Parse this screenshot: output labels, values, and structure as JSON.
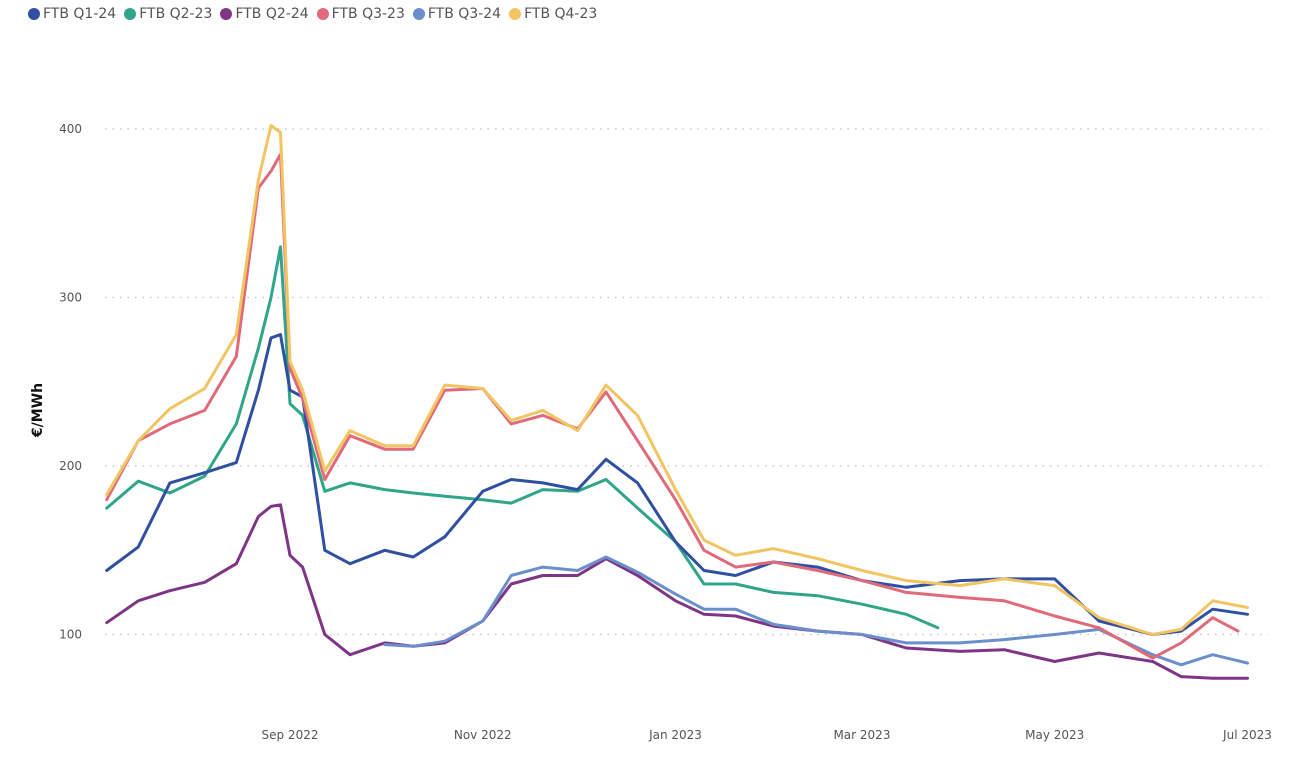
{
  "chart_data": {
    "type": "line",
    "title": "",
    "xlabel": "",
    "ylabel": "€/MWh",
    "ylim": [
      40,
      420
    ],
    "yticks": [
      100,
      200,
      300,
      400
    ],
    "xticks": [
      {
        "date": "2022-09-01",
        "label": "Sep 2022"
      },
      {
        "date": "2022-11-01",
        "label": "Nov 2022"
      },
      {
        "date": "2023-01-01",
        "label": "Jan 2023"
      },
      {
        "date": "2023-03-01",
        "label": "Mar 2023"
      },
      {
        "date": "2023-05-01",
        "label": "May 2023"
      },
      {
        "date": "2023-07-01",
        "label": "Jul 2023"
      }
    ],
    "grid": "horizontal dotted",
    "legend_position": "top-left",
    "series": [
      {
        "name": "FTB Q1-24",
        "color": "#2f4fa2",
        "points": [
          [
            "2022-07-05",
            138
          ],
          [
            "2022-07-15",
            152
          ],
          [
            "2022-07-25",
            190
          ],
          [
            "2022-08-05",
            196
          ],
          [
            "2022-08-15",
            202
          ],
          [
            "2022-08-22",
            245
          ],
          [
            "2022-08-26",
            276
          ],
          [
            "2022-08-29",
            278
          ],
          [
            "2022-09-01",
            245
          ],
          [
            "2022-09-05",
            241
          ],
          [
            "2022-09-12",
            150
          ],
          [
            "2022-09-20",
            142
          ],
          [
            "2022-10-01",
            150
          ],
          [
            "2022-10-10",
            146
          ],
          [
            "2022-10-20",
            158
          ],
          [
            "2022-11-01",
            185
          ],
          [
            "2022-11-10",
            192
          ],
          [
            "2022-11-20",
            190
          ],
          [
            "2022-12-01",
            186
          ],
          [
            "2022-12-10",
            204
          ],
          [
            "2022-12-20",
            190
          ],
          [
            "2023-01-01",
            155
          ],
          [
            "2023-01-10",
            138
          ],
          [
            "2023-01-20",
            135
          ],
          [
            "2023-02-01",
            143
          ],
          [
            "2023-02-15",
            140
          ],
          [
            "2023-03-01",
            132
          ],
          [
            "2023-03-15",
            128
          ],
          [
            "2023-04-01",
            132
          ],
          [
            "2023-04-15",
            133
          ],
          [
            "2023-05-01",
            133
          ],
          [
            "2023-05-15",
            108
          ],
          [
            "2023-06-01",
            100
          ],
          [
            "2023-06-10",
            102
          ],
          [
            "2023-06-20",
            115
          ],
          [
            "2023-07-01",
            112
          ]
        ]
      },
      {
        "name": "FTB Q2-23",
        "color": "#2fa58a",
        "points": [
          [
            "2022-07-05",
            175
          ],
          [
            "2022-07-15",
            191
          ],
          [
            "2022-07-25",
            184
          ],
          [
            "2022-08-05",
            194
          ],
          [
            "2022-08-15",
            225
          ],
          [
            "2022-08-22",
            270
          ],
          [
            "2022-08-26",
            300
          ],
          [
            "2022-08-29",
            330
          ],
          [
            "2022-09-01",
            237
          ],
          [
            "2022-09-05",
            230
          ],
          [
            "2022-09-12",
            185
          ],
          [
            "2022-09-20",
            190
          ],
          [
            "2022-10-01",
            186
          ],
          [
            "2022-10-10",
            184
          ],
          [
            "2022-10-20",
            182
          ],
          [
            "2022-11-01",
            180
          ],
          [
            "2022-11-10",
            178
          ],
          [
            "2022-11-20",
            186
          ],
          [
            "2022-12-01",
            185
          ],
          [
            "2022-12-10",
            192
          ],
          [
            "2022-12-20",
            175
          ],
          [
            "2023-01-01",
            155
          ],
          [
            "2023-01-10",
            130
          ],
          [
            "2023-01-20",
            130
          ],
          [
            "2023-02-01",
            125
          ],
          [
            "2023-02-15",
            123
          ],
          [
            "2023-03-01",
            118
          ],
          [
            "2023-03-15",
            112
          ],
          [
            "2023-03-25",
            104
          ]
        ]
      },
      {
        "name": "FTB Q2-24",
        "color": "#7e3585",
        "points": [
          [
            "2022-07-05",
            107
          ],
          [
            "2022-07-15",
            120
          ],
          [
            "2022-07-25",
            126
          ],
          [
            "2022-08-05",
            131
          ],
          [
            "2022-08-15",
            142
          ],
          [
            "2022-08-22",
            170
          ],
          [
            "2022-08-26",
            176
          ],
          [
            "2022-08-29",
            177
          ],
          [
            "2022-09-01",
            147
          ],
          [
            "2022-09-05",
            140
          ],
          [
            "2022-09-12",
            100
          ],
          [
            "2022-09-20",
            88
          ],
          [
            "2022-10-01",
            95
          ],
          [
            "2022-10-10",
            93
          ],
          [
            "2022-10-20",
            95
          ],
          [
            "2022-11-01",
            108
          ],
          [
            "2022-11-10",
            130
          ],
          [
            "2022-11-20",
            135
          ],
          [
            "2022-12-01",
            135
          ],
          [
            "2022-12-10",
            145
          ],
          [
            "2022-12-20",
            135
          ],
          [
            "2023-01-01",
            120
          ],
          [
            "2023-01-10",
            112
          ],
          [
            "2023-01-20",
            111
          ],
          [
            "2023-02-01",
            105
          ],
          [
            "2023-02-15",
            102
          ],
          [
            "2023-03-01",
            100
          ],
          [
            "2023-03-15",
            92
          ],
          [
            "2023-04-01",
            90
          ],
          [
            "2023-04-15",
            91
          ],
          [
            "2023-05-01",
            84
          ],
          [
            "2023-05-15",
            89
          ],
          [
            "2023-06-01",
            84
          ],
          [
            "2023-06-10",
            75
          ],
          [
            "2023-06-20",
            74
          ],
          [
            "2023-07-01",
            74
          ]
        ]
      },
      {
        "name": "FTB Q3-23",
        "color": "#e0697a",
        "points": [
          [
            "2022-07-05",
            180
          ],
          [
            "2022-07-15",
            215
          ],
          [
            "2022-07-25",
            225
          ],
          [
            "2022-08-05",
            233
          ],
          [
            "2022-08-15",
            265
          ],
          [
            "2022-08-22",
            365
          ],
          [
            "2022-08-26",
            375
          ],
          [
            "2022-08-29",
            385
          ],
          [
            "2022-09-01",
            258
          ],
          [
            "2022-09-05",
            240
          ],
          [
            "2022-09-12",
            192
          ],
          [
            "2022-09-20",
            218
          ],
          [
            "2022-10-01",
            210
          ],
          [
            "2022-10-10",
            210
          ],
          [
            "2022-10-20",
            245
          ],
          [
            "2022-11-01",
            246
          ],
          [
            "2022-11-10",
            225
          ],
          [
            "2022-11-20",
            230
          ],
          [
            "2022-12-01",
            222
          ],
          [
            "2022-12-10",
            244
          ],
          [
            "2022-12-20",
            215
          ],
          [
            "2023-01-01",
            180
          ],
          [
            "2023-01-10",
            150
          ],
          [
            "2023-01-20",
            140
          ],
          [
            "2023-02-01",
            143
          ],
          [
            "2023-02-15",
            138
          ],
          [
            "2023-03-01",
            132
          ],
          [
            "2023-03-15",
            125
          ],
          [
            "2023-04-01",
            122
          ],
          [
            "2023-04-15",
            120
          ],
          [
            "2023-05-01",
            111
          ],
          [
            "2023-05-15",
            104
          ],
          [
            "2023-06-01",
            86
          ],
          [
            "2023-06-10",
            95
          ],
          [
            "2023-06-20",
            110
          ],
          [
            "2023-06-28",
            102
          ]
        ]
      },
      {
        "name": "FTB Q3-24",
        "color": "#6b8fcc",
        "points": [
          [
            "2022-10-01",
            94
          ],
          [
            "2022-10-10",
            93
          ],
          [
            "2022-10-20",
            96
          ],
          [
            "2022-11-01",
            108
          ],
          [
            "2022-11-10",
            135
          ],
          [
            "2022-11-20",
            140
          ],
          [
            "2022-12-01",
            138
          ],
          [
            "2022-12-10",
            146
          ],
          [
            "2022-12-20",
            137
          ],
          [
            "2023-01-01",
            124
          ],
          [
            "2023-01-10",
            115
          ],
          [
            "2023-01-20",
            115
          ],
          [
            "2023-02-01",
            106
          ],
          [
            "2023-02-15",
            102
          ],
          [
            "2023-03-01",
            100
          ],
          [
            "2023-03-15",
            95
          ],
          [
            "2023-04-01",
            95
          ],
          [
            "2023-04-15",
            97
          ],
          [
            "2023-05-01",
            100
          ],
          [
            "2023-05-15",
            103
          ],
          [
            "2023-06-01",
            88
          ],
          [
            "2023-06-10",
            82
          ],
          [
            "2023-06-20",
            88
          ],
          [
            "2023-07-01",
            83
          ]
        ]
      },
      {
        "name": "FTB Q4-23",
        "color": "#f2c462",
        "points": [
          [
            "2022-07-05",
            183
          ],
          [
            "2022-07-15",
            215
          ],
          [
            "2022-07-25",
            234
          ],
          [
            "2022-08-05",
            246
          ],
          [
            "2022-08-15",
            278
          ],
          [
            "2022-08-22",
            370
          ],
          [
            "2022-08-26",
            402
          ],
          [
            "2022-08-29",
            398
          ],
          [
            "2022-09-01",
            262
          ],
          [
            "2022-09-05",
            245
          ],
          [
            "2022-09-12",
            197
          ],
          [
            "2022-09-20",
            221
          ],
          [
            "2022-10-01",
            212
          ],
          [
            "2022-10-10",
            212
          ],
          [
            "2022-10-20",
            248
          ],
          [
            "2022-11-01",
            246
          ],
          [
            "2022-11-10",
            227
          ],
          [
            "2022-11-20",
            233
          ],
          [
            "2022-12-01",
            221
          ],
          [
            "2022-12-10",
            248
          ],
          [
            "2022-12-20",
            230
          ],
          [
            "2023-01-01",
            186
          ],
          [
            "2023-01-10",
            156
          ],
          [
            "2023-01-20",
            147
          ],
          [
            "2023-02-01",
            151
          ],
          [
            "2023-02-15",
            145
          ],
          [
            "2023-03-01",
            138
          ],
          [
            "2023-03-15",
            132
          ],
          [
            "2023-04-01",
            129
          ],
          [
            "2023-04-15",
            133
          ],
          [
            "2023-05-01",
            129
          ],
          [
            "2023-05-15",
            110
          ],
          [
            "2023-06-01",
            100
          ],
          [
            "2023-06-10",
            103
          ],
          [
            "2023-06-20",
            120
          ],
          [
            "2023-07-01",
            116
          ]
        ]
      }
    ]
  }
}
